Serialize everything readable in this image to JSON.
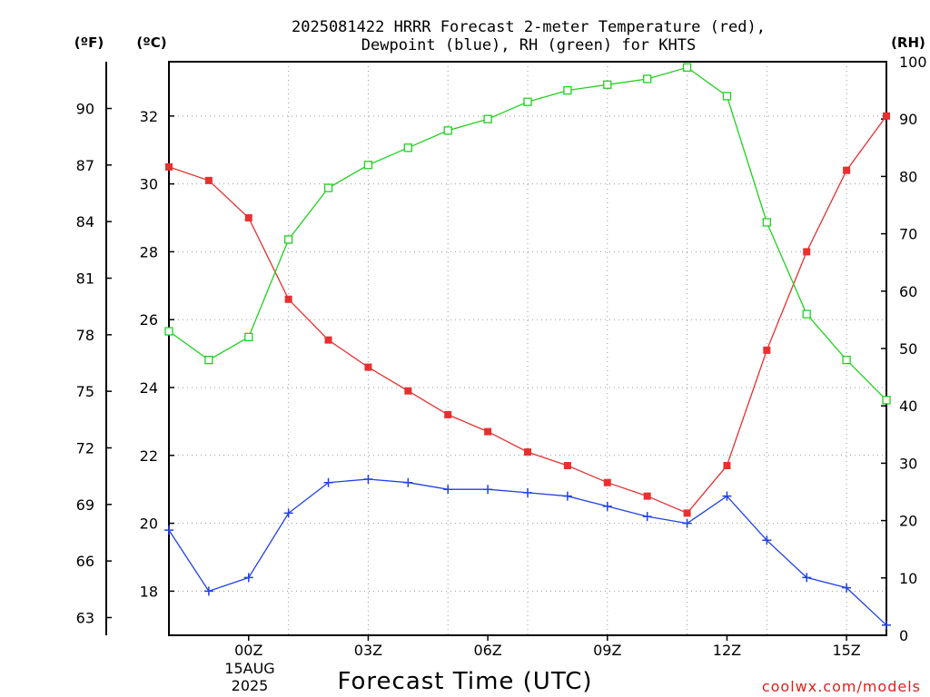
{
  "chart_data": {
    "type": "line",
    "title_line1": "2025081422 HRRR Forecast 2-meter Temperature (red),",
    "title_line2": "Dewpoint (blue), RH (green) for KHTS",
    "xlabel": "Forecast Time (UTC)",
    "credit": "coolwx.com/models",
    "date_labels": [
      "15AUG",
      "2025"
    ],
    "units": {
      "fahrenheit": "(ºF)",
      "celsius": "(ºC)",
      "rh": "(RH)"
    },
    "x_range": [
      -2,
      16
    ],
    "x_ticks": [
      {
        "x": 0,
        "label": "00Z"
      },
      {
        "x": 3,
        "label": "03Z"
      },
      {
        "x": 6,
        "label": "06Z"
      },
      {
        "x": 9,
        "label": "09Z"
      },
      {
        "x": 12,
        "label": "12Z"
      },
      {
        "x": 15,
        "label": "15Z"
      }
    ],
    "x_grid": [
      1,
      3,
      5,
      7,
      9,
      11,
      13,
      15
    ],
    "celsius_range": [
      16.7,
      33.6
    ],
    "celsius_ticks": [
      18,
      20,
      22,
      24,
      26,
      28,
      30,
      32
    ],
    "fahrenheit_ticks": [
      63,
      66,
      69,
      72,
      75,
      78,
      81,
      84,
      87,
      90
    ],
    "rh_range": [
      0,
      100
    ],
    "rh_ticks": [
      0,
      10,
      20,
      30,
      40,
      50,
      60,
      70,
      80,
      90,
      100
    ],
    "grid": true,
    "series": [
      {
        "key": "temperature",
        "axis": "celsius",
        "color": "#e83030",
        "marker": "filled-square",
        "x": [
          -2,
          -1,
          0,
          1,
          2,
          3,
          4,
          5,
          6,
          7,
          8,
          9,
          10,
          11,
          12,
          13,
          14,
          15,
          16
        ],
        "values": [
          30.5,
          30.1,
          29.0,
          26.6,
          25.4,
          24.6,
          23.9,
          23.2,
          22.7,
          22.1,
          21.7,
          21.2,
          20.8,
          20.3,
          21.7,
          25.1,
          28.0,
          30.4,
          32.0
        ]
      },
      {
        "key": "dewpoint",
        "axis": "celsius",
        "color": "#2040e8",
        "marker": "plus",
        "x": [
          -2,
          -1,
          0,
          1,
          2,
          3,
          4,
          5,
          6,
          7,
          8,
          9,
          10,
          11,
          12,
          13,
          14,
          15,
          16
        ],
        "values": [
          19.8,
          18.0,
          18.4,
          20.3,
          21.2,
          21.3,
          21.2,
          21.0,
          21.0,
          20.9,
          20.8,
          20.5,
          20.2,
          20.0,
          20.8,
          19.5,
          18.4,
          18.1,
          17.0
        ]
      },
      {
        "key": "rh",
        "axis": "rh",
        "color": "#20d020",
        "marker": "open-square",
        "x": [
          -2,
          -1,
          0,
          1,
          2,
          3,
          4,
          5,
          6,
          7,
          8,
          9,
          10,
          11,
          12,
          13,
          14,
          15,
          16
        ],
        "values": [
          53,
          48,
          52,
          69,
          78,
          82,
          85,
          88,
          90,
          93,
          95,
          96,
          97,
          99,
          94,
          72,
          56,
          48,
          41
        ]
      }
    ]
  }
}
